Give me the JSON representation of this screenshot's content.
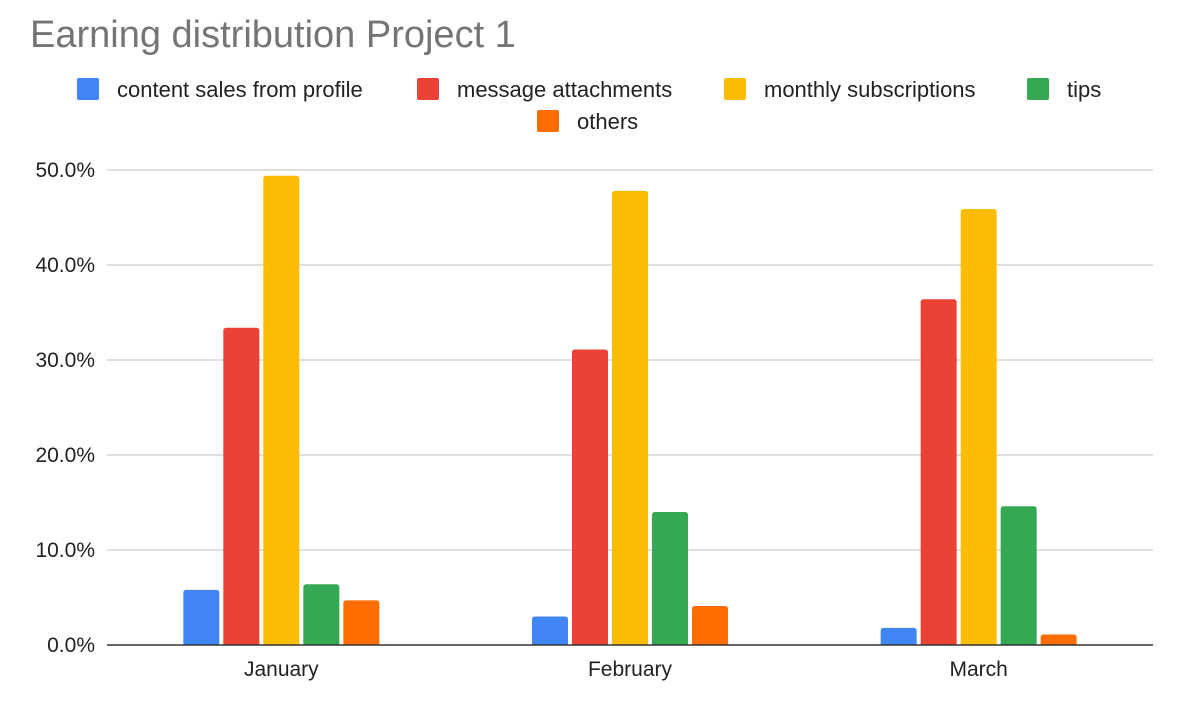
{
  "chart_data": {
    "type": "bar",
    "title": "Earning distribution Project 1",
    "xlabel": "",
    "ylabel": "",
    "categories": [
      "January",
      "February",
      "March"
    ],
    "series": [
      {
        "name": "content sales from profile",
        "color": "#4285F4",
        "values": [
          5.8,
          3.0,
          1.8
        ]
      },
      {
        "name": "message attachments",
        "color": "#EA4335",
        "values": [
          33.4,
          31.1,
          36.4
        ]
      },
      {
        "name": "monthly subscriptions",
        "color": "#FBBC04",
        "values": [
          49.4,
          47.8,
          45.9
        ]
      },
      {
        "name": "tips",
        "color": "#34A853",
        "values": [
          6.4,
          14.0,
          14.6
        ]
      },
      {
        "name": "others",
        "color": "#FF6D01",
        "values": [
          4.7,
          4.1,
          1.1
        ]
      }
    ],
    "ylim": [
      0,
      50
    ],
    "yticks": [
      0,
      10,
      20,
      30,
      40,
      50
    ],
    "ytick_labels": [
      "0.0%",
      "10.0%",
      "20.0%",
      "30.0%",
      "40.0%",
      "50.0%"
    ],
    "grid": true,
    "legend_position": "top"
  }
}
